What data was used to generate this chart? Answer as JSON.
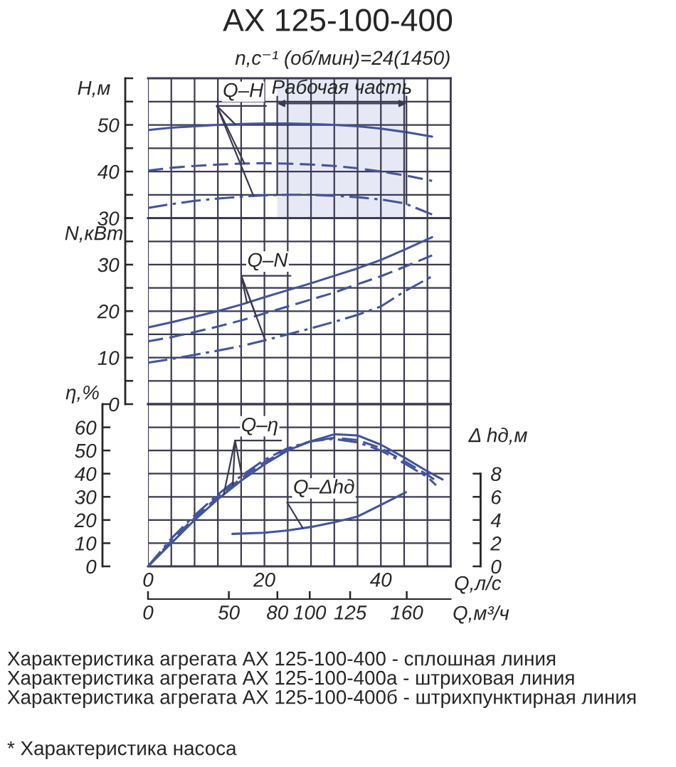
{
  "chart_data": [
    {
      "type": "line",
      "title": "АХ 125-100-400",
      "subtitle": "n,с⁻¹ (об/мин)=24(1450)",
      "ylabel": "H,м",
      "x": [
        0,
        4,
        8,
        12,
        16,
        20,
        24,
        28,
        32,
        36,
        40,
        44,
        48.8
      ],
      "series": [
        {
          "color": "#44549c",
          "line_style": "solid",
          "values": [
            48.9,
            49.4,
            49.7,
            50.0,
            50.2,
            50.3,
            50.3,
            50.2,
            50.0,
            49.7,
            49.2,
            48.5,
            47.5
          ]
        },
        {
          "color": "#44549c",
          "line_style": "dashed",
          "values": [
            40.2,
            40.8,
            41.2,
            41.5,
            41.7,
            41.8,
            41.7,
            41.5,
            41.2,
            40.7,
            40.0,
            39.2,
            38.0
          ]
        },
        {
          "color": "#44549c",
          "line_style": "dashdot",
          "values": [
            32.2,
            33.0,
            33.7,
            34.2,
            34.6,
            34.9,
            35.0,
            35.0,
            34.8,
            34.5,
            34.0,
            33.2,
            30.8
          ]
        }
      ],
      "xlim": [
        0,
        52
      ],
      "xticks": [
        0,
        {
          "value": 4,
          "label": null
        },
        {
          "value": 8,
          "label": null
        },
        {
          "value": 12,
          "label": null
        },
        {
          "value": 16,
          "label": null
        },
        20,
        {
          "value": 24,
          "label": null
        },
        {
          "value": 28,
          "label": null
        },
        {
          "value": 32,
          "label": null
        },
        {
          "value": 36,
          "label": null
        },
        40,
        {
          "value": 44,
          "label": null
        },
        {
          "value": 48,
          "label": null
        },
        {
          "value": 52,
          "label": null
        }
      ],
      "ylim": [
        30,
        60
      ],
      "yticks": [
        30,
        {
          "value": 35,
          "label": null
        },
        40,
        {
          "value": 45,
          "label": null
        },
        50,
        {
          "value": 55,
          "label": null
        },
        {
          "value": 60,
          "label": null
        }
      ],
      "grid": true,
      "tick_labels": "y",
      "annotations": [
        {
          "text": "Q–H",
          "x": 15,
          "y": 50.1
        }
      ],
      "bands": [
        {
          "axis": "x",
          "from": 22.2,
          "to": 44.4,
          "label": "Рабочая часть",
          "color": "#e6e9f5"
        }
      ]
    },
    {
      "type": "line",
      "ylabel": "N,кВт",
      "x": [
        0,
        4,
        8,
        12,
        16,
        20,
        24,
        28,
        32,
        36,
        40,
        44,
        48.8
      ],
      "series": [
        {
          "color": "#44549c",
          "line_style": "solid",
          "values": [
            16.5,
            17.6,
            18.8,
            20.0,
            21.4,
            23.0,
            24.5,
            26.0,
            27.6,
            29.2,
            31.0,
            33.2,
            35.9
          ]
        },
        {
          "color": "#44549c",
          "line_style": "dashed",
          "values": [
            13.5,
            14.4,
            15.5,
            16.7,
            18.0,
            19.5,
            21.0,
            22.5,
            24.0,
            25.8,
            27.5,
            29.5,
            32.0
          ]
        },
        {
          "color": "#44549c",
          "line_style": "dashdot",
          "values": [
            8.9,
            9.7,
            10.6,
            11.5,
            12.5,
            13.7,
            15.0,
            16.3,
            17.7,
            19.2,
            21.0,
            24.2,
            27.5
          ]
        }
      ],
      "xlim": [
        0,
        52
      ],
      "xticks": [
        0,
        {
          "value": 4,
          "label": null
        },
        {
          "value": 8,
          "label": null
        },
        {
          "value": 12,
          "label": null
        },
        {
          "value": 16,
          "label": null
        },
        20,
        {
          "value": 24,
          "label": null
        },
        {
          "value": 28,
          "label": null
        },
        {
          "value": 32,
          "label": null
        },
        {
          "value": 36,
          "label": null
        },
        40,
        {
          "value": 44,
          "label": null
        },
        {
          "value": 48,
          "label": null
        },
        {
          "value": 52,
          "label": null
        }
      ],
      "ylim": [
        0,
        40
      ],
      "yticks": [
        0,
        {
          "value": 5,
          "label": null
        },
        10,
        {
          "value": 15,
          "label": null
        },
        20,
        {
          "value": 25,
          "label": null
        },
        30,
        {
          "value": 35,
          "label": null
        },
        {
          "value": 40,
          "label": null
        }
      ],
      "grid": true,
      "tick_labels": "y",
      "annotations": [
        {
          "text": "Q–N",
          "x": 17,
          "y": 21.8
        }
      ]
    },
    {
      "type": "line",
      "ylabel": "η,%",
      "xlabel": "Q,л/с",
      "x2label": "Q,м³/ч",
      "series": [
        {
          "color": "#44549c",
          "line_style": "solid",
          "x": [
            0,
            4,
            8,
            12,
            16,
            20,
            24,
            28,
            32,
            36,
            40,
            44,
            48,
            50.6
          ],
          "values": [
            0,
            10,
            20,
            29,
            37,
            44,
            50,
            54,
            57,
            56.5,
            52.5,
            47,
            41,
            37.5
          ]
        },
        {
          "color": "#44549c",
          "line_style": "dashed",
          "x": [
            0,
            4,
            8,
            12,
            16,
            20,
            24,
            28,
            32,
            36,
            40,
            44,
            48,
            50
          ],
          "values": [
            0,
            11,
            21,
            30,
            38,
            45,
            50.5,
            54,
            55.5,
            54.5,
            51,
            45.5,
            39.5,
            36
          ]
        },
        {
          "color": "#44549c",
          "line_style": "dashdot",
          "x": [
            0,
            4,
            8,
            12,
            16,
            20,
            24,
            28,
            32,
            36,
            40,
            44,
            48,
            49.5
          ],
          "values": [
            0,
            12,
            22,
            31,
            39,
            46,
            51,
            54,
            55,
            53.5,
            50,
            44.5,
            38.5,
            35
          ]
        }
      ],
      "xlim": [
        0,
        52
      ],
      "xticks": [
        0,
        {
          "value": 4,
          "label": null
        },
        {
          "value": 8,
          "label": null
        },
        {
          "value": 12,
          "label": null
        },
        {
          "value": 16,
          "label": null
        },
        20,
        {
          "value": 24,
          "label": null
        },
        {
          "value": 28,
          "label": null
        },
        {
          "value": 32,
          "label": null
        },
        {
          "value": 36,
          "label": null
        },
        40,
        {
          "value": 44,
          "label": null
        },
        {
          "value": 48,
          "label": null
        },
        {
          "value": 52,
          "label": null
        }
      ],
      "x2lim": [
        0,
        187.2
      ],
      "x2ticks": [
        0,
        50,
        80,
        100,
        125,
        160
      ],
      "ylim": [
        0,
        70
      ],
      "yticks": [
        0,
        10,
        20,
        30,
        40,
        50,
        60,
        {
          "value": 70,
          "label": null
        }
      ],
      "grid": true,
      "annotations": [
        {
          "text": "Q–η",
          "x": 13,
          "y": 31.0
        },
        "Характеристика агрегата АХ 125-100-400 - сплошная линия",
        "Характеристика агрегата АХ 125-100-400а - штриховая линия",
        "Характеристика агрегата АХ 125-100-400б - штрихпунктирная линия",
        "* Характеристика насоса"
      ]
    },
    {
      "type": "line",
      "ylabel": "Δ hд,м",
      "x": [
        14.5,
        20,
        24,
        28,
        32,
        36,
        40,
        44.3
      ],
      "series": [
        {
          "color": "#44549c",
          "line_style": "solid",
          "values": [
            2.8,
            2.9,
            3.1,
            3.4,
            3.8,
            4.3,
            5.3,
            6.4
          ]
        }
      ],
      "xlim": [
        0,
        52
      ],
      "xticks": [
        0,
        {
          "value": 4,
          "label": null
        },
        {
          "value": 8,
          "label": null
        },
        {
          "value": 12,
          "label": null
        },
        {
          "value": 16,
          "label": null
        },
        20,
        {
          "value": 24,
          "label": null
        },
        {
          "value": 28,
          "label": null
        },
        {
          "value": 32,
          "label": null
        },
        {
          "value": 36,
          "label": null
        },
        40,
        {
          "value": 44,
          "label": null
        },
        {
          "value": 48,
          "label": null
        },
        {
          "value": 52,
          "label": null
        }
      ],
      "ylim": [
        0,
        14
      ],
      "yticks": [
        0,
        2,
        4,
        6,
        8
      ],
      "tick_labels": "y",
      "annotations": [
        {
          "text": "Q–Δhд",
          "x": 26.6,
          "y": 3.3
        }
      ]
    }
  ]
}
